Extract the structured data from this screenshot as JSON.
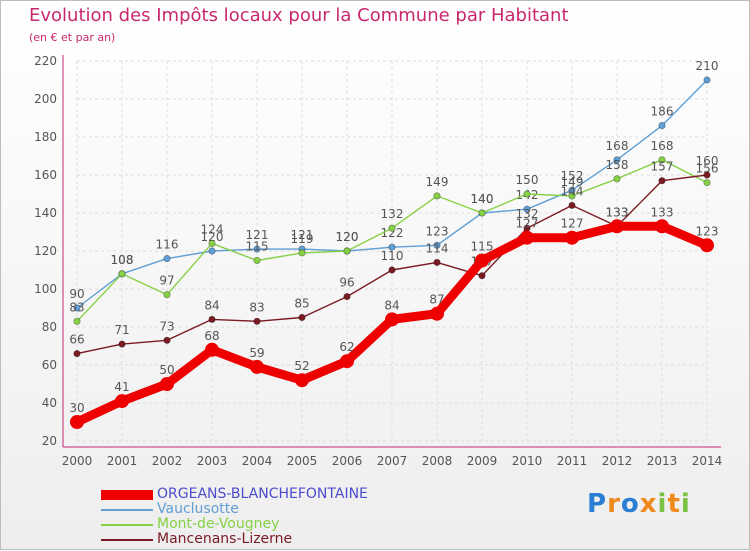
{
  "title": "Evolution des Impôts locaux pour la Commune par Habitant",
  "subtitle": "(en € et par an)",
  "logo": {
    "text": [
      "P",
      "r",
      "o",
      "x",
      "i",
      "t",
      "i"
    ],
    "colors": [
      "#2a7fd4",
      "#f08a1c",
      "#2a7fd4",
      "#f08a1c",
      "#7cc242",
      "#f08a1c",
      "#7cc242"
    ]
  },
  "chart_data": {
    "type": "line",
    "title": "Evolution des Impôts locaux pour la Commune par Habitant",
    "subtitle": "(en € et par an)",
    "xlabel": "",
    "ylabel": "",
    "x": [
      2000,
      2001,
      2002,
      2003,
      2004,
      2005,
      2006,
      2007,
      2008,
      2009,
      2010,
      2011,
      2012,
      2013,
      2014
    ],
    "ylim": [
      20,
      220
    ],
    "yticks": [
      20,
      40,
      60,
      80,
      100,
      120,
      140,
      160,
      180,
      200,
      220
    ],
    "grid": true,
    "legend_position": "bottom-left",
    "series": [
      {
        "name": "ORGEANS-BLANCHEFONTAINE",
        "color": "#ee0000",
        "label_color": "#4c4ccc",
        "emphasis": true,
        "values": [
          30,
          41,
          50,
          68,
          59,
          52,
          62,
          84,
          87,
          115,
          127,
          127,
          133,
          133,
          123
        ]
      },
      {
        "name": "Vauclusotte",
        "color": "#5f9fd6",
        "label_color": "#5f9fd6",
        "emphasis": false,
        "values": [
          90,
          108,
          116,
          120,
          121,
          121,
          120,
          122,
          123,
          140,
          142,
          152,
          168,
          186,
          210
        ]
      },
      {
        "name": "Mont-de-Vougney",
        "color": "#86d146",
        "label_color": "#86d146",
        "emphasis": false,
        "values": [
          83,
          108,
          97,
          124,
          115,
          119,
          120,
          132,
          149,
          140,
          150,
          149,
          158,
          168,
          156
        ]
      },
      {
        "name": "Mancenans-Lizerne",
        "color": "#7a1a22",
        "label_color": "#7a1a22",
        "emphasis": false,
        "values": [
          66,
          71,
          73,
          84,
          83,
          85,
          96,
          110,
          114,
          107,
          132,
          144,
          133,
          157,
          160
        ]
      }
    ]
  }
}
